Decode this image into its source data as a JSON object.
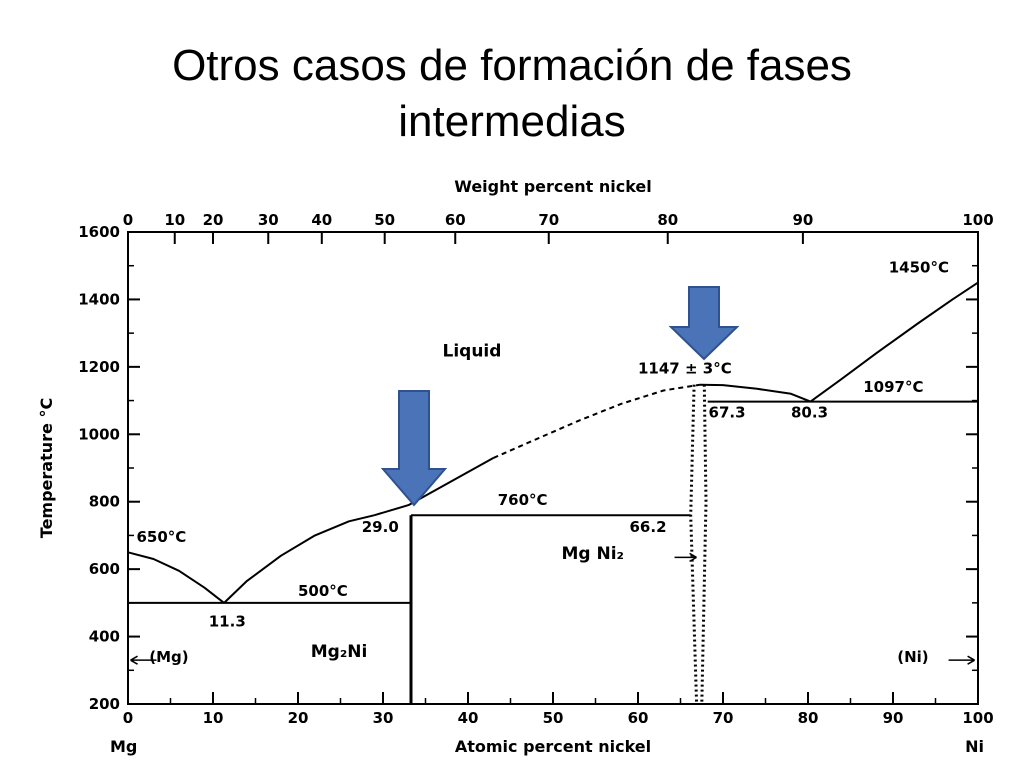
{
  "slide": {
    "title_line1": "Otros casos de formación de fases",
    "title_line2": "intermedias"
  },
  "chart_data": {
    "type": "line",
    "title": "",
    "x_axis": {
      "label": "Atomic percent nickel",
      "range": [
        0,
        100
      ],
      "ticks": [
        0,
        10,
        20,
        30,
        40,
        50,
        60,
        70,
        80,
        90,
        100
      ],
      "end_labels": {
        "left": "Mg",
        "right": "Ni"
      }
    },
    "x2_axis": {
      "label": "Weight percent nickel",
      "ticks": [
        {
          "label": "0",
          "at_atomic": 0
        },
        {
          "label": "10",
          "at_atomic": 5.5
        },
        {
          "label": "20",
          "at_atomic": 10.0
        },
        {
          "label": "30",
          "at_atomic": 16.5
        },
        {
          "label": "40",
          "at_atomic": 22.8
        },
        {
          "label": "50",
          "at_atomic": 30.2
        },
        {
          "label": "60",
          "at_atomic": 38.5
        },
        {
          "label": "70",
          "at_atomic": 49.5
        },
        {
          "label": "80",
          "at_atomic": 63.5
        },
        {
          "label": "90",
          "at_atomic": 79.4
        },
        {
          "label": "100",
          "at_atomic": 100
        }
      ]
    },
    "y_axis": {
      "label": "Temperature °C",
      "range": [
        200,
        1600
      ],
      "ticks": [
        200,
        400,
        600,
        800,
        1000,
        1200,
        1400,
        1600
      ]
    },
    "grid": false,
    "series": [
      {
        "style": "solid",
        "points": [
          [
            0,
            650
          ],
          [
            3,
            630
          ],
          [
            6,
            595
          ],
          [
            9,
            545
          ],
          [
            11.3,
            500
          ]
        ]
      },
      {
        "style": "solid",
        "points": [
          [
            11.3,
            500
          ],
          [
            14,
            565
          ],
          [
            18,
            640
          ],
          [
            22,
            700
          ],
          [
            26,
            742
          ],
          [
            29,
            760
          ]
        ]
      },
      {
        "style": "solid",
        "points": [
          [
            29,
            760
          ],
          [
            33,
            790
          ],
          [
            38,
            860
          ],
          [
            43,
            930
          ]
        ]
      },
      {
        "style": "dashed",
        "points": [
          [
            43,
            930
          ],
          [
            48,
            985
          ],
          [
            53,
            1040
          ],
          [
            58,
            1090
          ],
          [
            63,
            1130
          ],
          [
            67.3,
            1147
          ]
        ]
      },
      {
        "style": "solid",
        "points": [
          [
            67.3,
            1147
          ],
          [
            70,
            1146
          ],
          [
            74,
            1135
          ],
          [
            78,
            1120
          ],
          [
            80.3,
            1097
          ]
        ]
      },
      {
        "style": "solid",
        "points": [
          [
            80.3,
            1097
          ],
          [
            84,
            1165
          ],
          [
            88,
            1240
          ],
          [
            93,
            1330
          ],
          [
            97,
            1400
          ],
          [
            100,
            1450
          ]
        ]
      },
      {
        "style": "solid",
        "points": [
          [
            0,
            500
          ],
          [
            33.3,
            500
          ]
        ]
      },
      {
        "style": "solid",
        "points": [
          [
            33.3,
            760
          ],
          [
            66.2,
            760
          ]
        ]
      },
      {
        "style": "solid",
        "points": [
          [
            68.2,
            1097
          ],
          [
            100,
            1097
          ]
        ]
      },
      {
        "style": "solid",
        "points": [
          [
            33.3,
            200
          ],
          [
            33.3,
            760
          ]
        ]
      },
      {
        "style": "dotted",
        "points": [
          [
            66.6,
            1147
          ],
          [
            66.2,
            760
          ],
          [
            66.9,
            200
          ]
        ]
      },
      {
        "style": "dotted",
        "points": [
          [
            67.8,
            1147
          ],
          [
            68.0,
            800
          ],
          [
            67.5,
            200
          ]
        ]
      }
    ],
    "annotations": [
      {
        "text": "Liquid",
        "x": 37,
        "y": 1230
      },
      {
        "text": "650°C",
        "x": 1,
        "y": 680
      },
      {
        "text": "11.3",
        "x": 9.5,
        "y": 430
      },
      {
        "text": "500°C",
        "x": 20,
        "y": 520
      },
      {
        "text": "29.0",
        "x": 27.5,
        "y": 710
      },
      {
        "text": "760°C",
        "x": 43.5,
        "y": 790
      },
      {
        "text": "66.2",
        "x": 59,
        "y": 710
      },
      {
        "text": "1147 ± 3°C",
        "x": 60,
        "y": 1180
      },
      {
        "text": "67.3",
        "x": 68.3,
        "y": 1050
      },
      {
        "text": "80.3",
        "x": 78,
        "y": 1050
      },
      {
        "text": "1097°C",
        "x": 86.5,
        "y": 1125
      },
      {
        "text": "1450°C",
        "x": 89.5,
        "y": 1480
      },
      {
        "text": "(Mg)",
        "x": 2.5,
        "y": 325
      },
      {
        "text": "Mg₂Ni",
        "x": 21.5,
        "y": 340
      },
      {
        "text": "Mg Ni₂",
        "x": 51,
        "y": 630
      },
      {
        "text": "(Ni)",
        "x": 90.5,
        "y": 325
      }
    ],
    "arrows_color": "#4a73b8"
  }
}
